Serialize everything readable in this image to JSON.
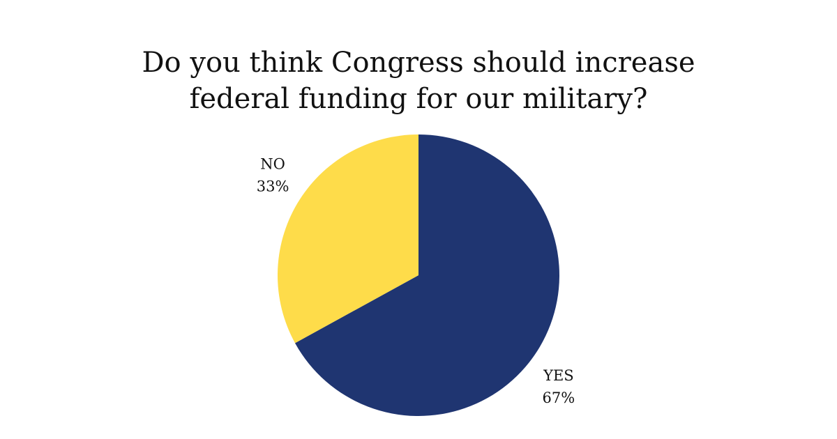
{
  "chart_data": {
    "type": "pie",
    "title_lines": [
      "Do you think Congress should increase",
      "federal funding for our military?"
    ],
    "slices": [
      {
        "name": "YES",
        "value": 67,
        "value_label": "67%",
        "color": "#1f3571"
      },
      {
        "name": "NO",
        "value": 33,
        "value_label": "33%",
        "color": "#fedc4a"
      }
    ],
    "start_angle": "12 o'clock",
    "direction": "clockwise",
    "legend": "none"
  }
}
